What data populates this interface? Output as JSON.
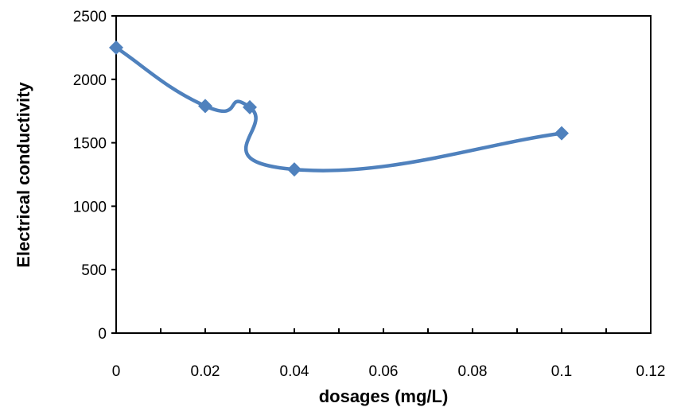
{
  "chart_data": {
    "type": "line",
    "smooth": true,
    "title": "",
    "xlabel": "dosages (mg/L)",
    "ylabel": "Electrical conductivity",
    "xlim": [
      0,
      0.12
    ],
    "ylim": [
      0,
      2500
    ],
    "x_ticks": [
      "0",
      "0.02",
      "0.04",
      "0.06",
      "0.08",
      "0.1",
      "0.12"
    ],
    "y_ticks": [
      "0",
      "500",
      "1000",
      "1500",
      "2000",
      "2500"
    ],
    "x_tick_values": [
      0,
      0.02,
      0.04,
      0.06,
      0.08,
      0.1,
      0.12
    ],
    "y_tick_values": [
      0,
      500,
      1000,
      1500,
      2000,
      2500
    ],
    "grid": false,
    "legend": "none",
    "marker": "diamond",
    "series": [
      {
        "color": "#4F81BD",
        "x": [
          0,
          0.02,
          0.03,
          0.04,
          0.1
        ],
        "y": [
          2250,
          1790,
          1780,
          1290,
          1575
        ]
      }
    ]
  }
}
